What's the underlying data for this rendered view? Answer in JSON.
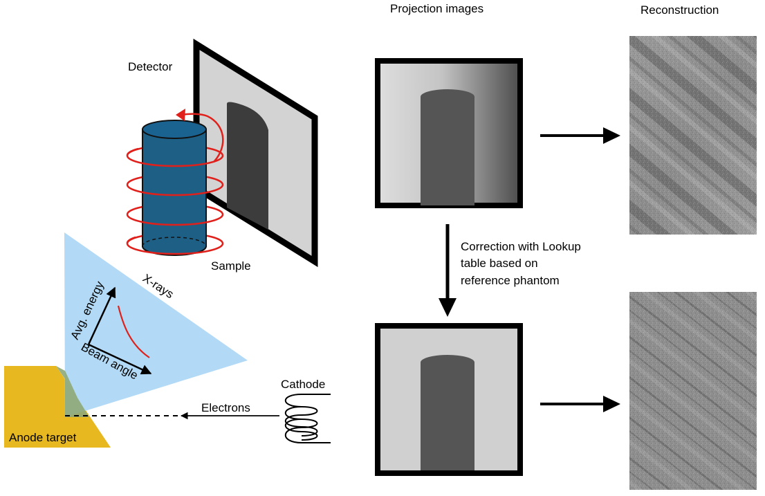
{
  "headers": {
    "projection": "Projection images",
    "reconstruction": "Reconstruction"
  },
  "labels": {
    "detector": "Detector",
    "sample": "Sample",
    "xrays": "X-rays",
    "avg_energy": "Avg. energy",
    "beam_angle": "Beam angle",
    "cathode": "Cathode",
    "electrons": "Electrons",
    "anode": "Anode target",
    "correction_line1": "Correction with Lookup",
    "correction_line2": "table based on",
    "correction_line3": "reference phantom"
  },
  "colors": {
    "anode": "#E8B820",
    "xray_beam": "#AED8F5",
    "sample": "#1E5F86",
    "sample_top": "#1A6391",
    "rotation_arrow": "#E0201B",
    "energy_curve": "#E0201B",
    "detector_face": "#D3D3D3",
    "detector_frame": "#000000",
    "shadow": "#3C3C3C",
    "projection_cylinder": "#555555"
  }
}
